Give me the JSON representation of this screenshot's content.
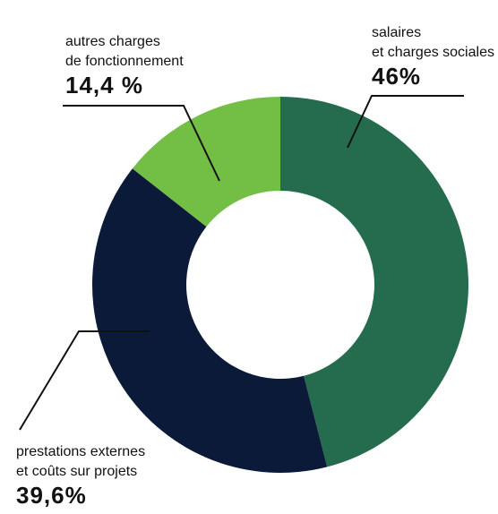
{
  "chart_data": {
    "type": "donut",
    "categories": [
      "salaires\net charges sociales",
      "prestations externes\net coûts sur projets",
      "autres charges\nde fonctionnement"
    ],
    "values": [
      46,
      39.6,
      14.4
    ],
    "value_labels": [
      "46%",
      "39,6%",
      "14,4 %"
    ],
    "colors": [
      "#256b4d",
      "#0c1a3a",
      "#73bf45"
    ]
  }
}
